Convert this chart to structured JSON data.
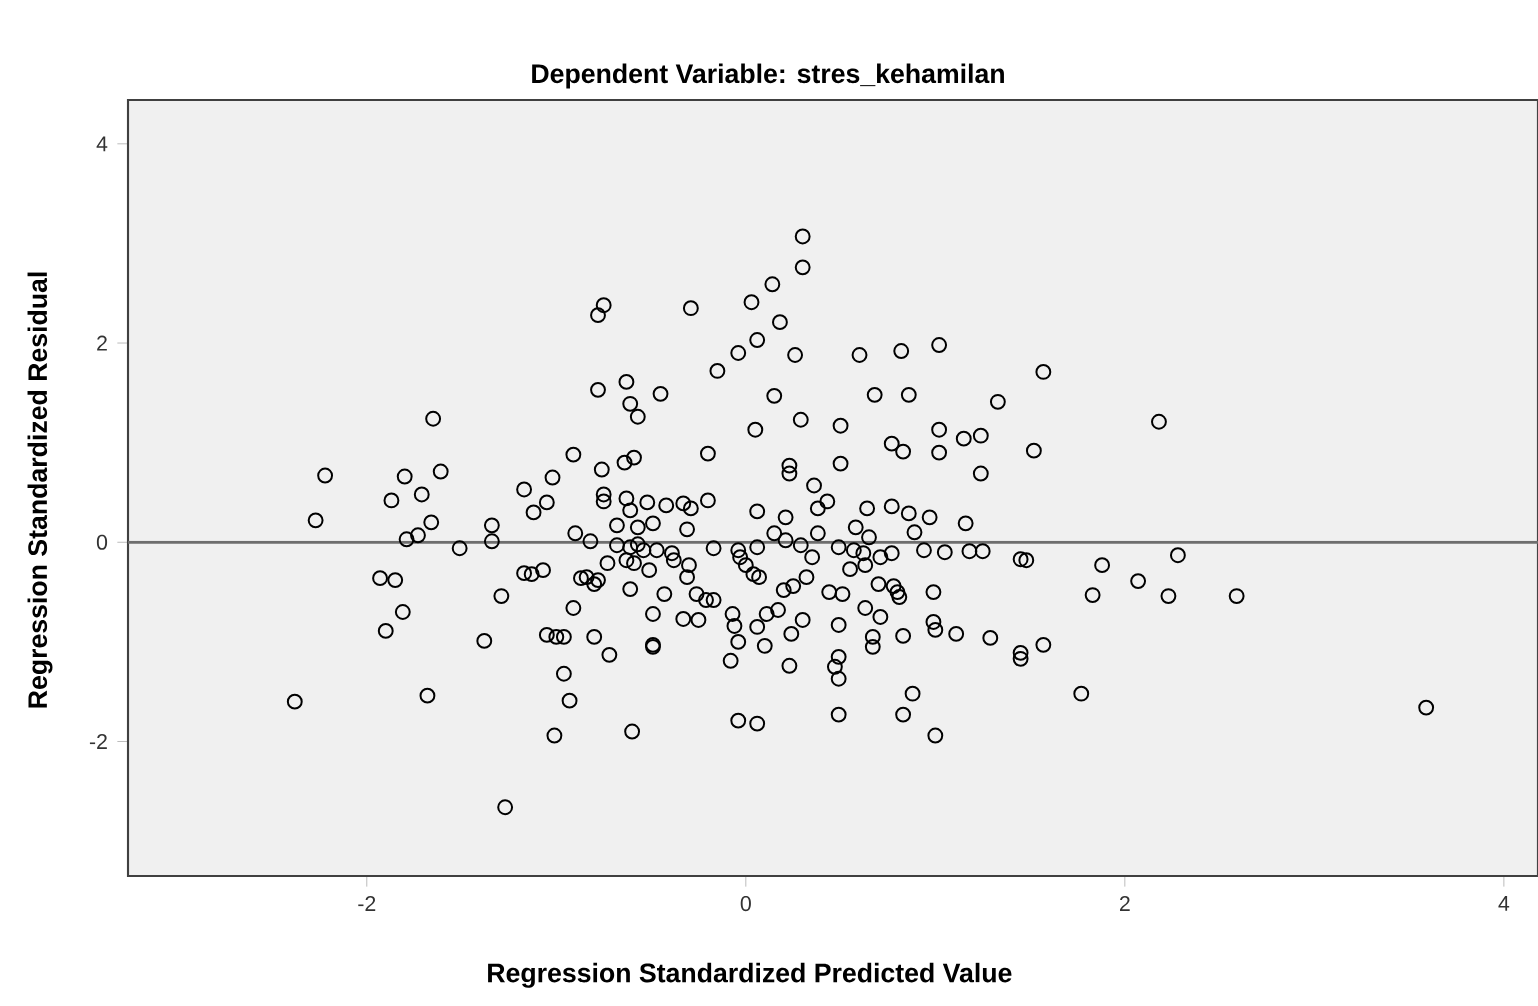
{
  "chart_data": {
    "type": "scatter",
    "title": "Dependent Variable: stres_kehamilan",
    "xlabel": "Regression Standardized Predicted Value",
    "ylabel": "Regression Standardized Residual",
    "xlim": [
      -3.26,
      4.18
    ],
    "ylim": [
      -3.35,
      4.44
    ],
    "xticks": [
      -2,
      0,
      2,
      4
    ],
    "yticks": [
      -2,
      0,
      2,
      4
    ],
    "grid": false,
    "marker": "circle",
    "ref_lines": [
      {
        "axis": "y",
        "value": 0,
        "color": "#6e6e6e"
      }
    ],
    "series": [
      {
        "color": "#000000",
        "x": [
          -1.65,
          -2.22,
          -2.27,
          -1.8,
          -1.61,
          -1.87,
          -1.71,
          -1.66,
          -1.79,
          -1.73,
          -1.51,
          -1.34,
          -1.34,
          -1.17,
          -1.02,
          -1.12,
          -1.05,
          -0.91,
          -0.9,
          -1.93,
          -1.85,
          -1.81,
          -1.9,
          -2.38,
          -1.68,
          -1.38,
          -1.29,
          -1.17,
          -1.13,
          -1.07,
          -1.05,
          -1.0,
          -0.96,
          -0.96,
          -0.93,
          -1.01,
          -1.27,
          -0.91,
          -0.87,
          0.3,
          0.3,
          -0.75,
          -0.78,
          -0.29,
          0.14,
          0.03,
          0.18,
          0.06,
          -0.04,
          0.26,
          -0.15,
          -0.78,
          -0.63,
          -0.61,
          -0.57,
          -0.45,
          0.15,
          0.05,
          0.29,
          -0.76,
          -0.64,
          -0.59,
          -0.2,
          0.23,
          0.23,
          0.36,
          -0.75,
          -0.75,
          -0.63,
          -0.52,
          -0.42,
          -0.33,
          -0.29,
          -0.2,
          -0.61,
          -0.68,
          -0.57,
          -0.49,
          -0.31,
          0.06,
          0.21,
          0.38,
          -0.82,
          -0.68,
          -0.61,
          -0.57,
          -0.54,
          -0.63,
          -0.59,
          -0.47,
          -0.39,
          -0.17,
          -0.04,
          0.06,
          0.15,
          0.21,
          0.29,
          0.35,
          -0.84,
          -0.78,
          -0.8,
          -0.73,
          -0.51,
          -0.38,
          -0.31,
          -0.3,
          -0.26,
          -0.21,
          -0.17,
          -0.61,
          -0.43,
          -0.03,
          0.0,
          0.04,
          0.07,
          0.2,
          0.25,
          0.32,
          -0.49,
          -0.33,
          -0.25,
          -0.07,
          -0.06,
          0.06,
          0.11,
          0.17,
          0.3,
          0.24,
          -0.8,
          -0.72,
          -0.49,
          -0.49,
          -0.04,
          -0.08,
          0.1,
          0.23,
          -0.6,
          -0.04,
          0.06,
          0.6,
          0.82,
          1.02,
          1.57,
          0.68,
          0.86,
          1.33,
          0.5,
          1.02,
          1.15,
          1.24,
          0.77,
          0.83,
          1.02,
          1.52,
          1.24,
          0.5,
          0.43,
          0.64,
          0.77,
          0.86,
          0.97,
          1.16,
          0.58,
          0.65,
          0.89,
          0.38,
          0.49,
          0.57,
          0.62,
          0.71,
          0.77,
          0.94,
          1.05,
          1.18,
          1.25,
          1.45,
          1.48,
          0.55,
          0.63,
          0.44,
          0.51,
          0.7,
          0.78,
          0.81,
          0.8,
          0.99,
          0.63,
          0.71,
          0.49,
          0.99,
          1.0,
          1.11,
          0.83,
          0.67,
          0.67,
          1.29,
          1.45,
          1.45,
          1.57,
          0.49,
          0.47,
          0.49,
          0.88,
          0.49,
          0.83,
          1.0,
          2.18,
          1.88,
          2.28,
          2.07,
          1.83,
          2.23,
          2.59,
          1.77,
          3.59
        ],
        "values": [
          1.24,
          0.67,
          0.22,
          0.66,
          0.71,
          0.42,
          0.48,
          0.2,
          0.03,
          0.07,
          -0.06,
          0.17,
          0.01,
          0.53,
          0.65,
          0.3,
          0.4,
          0.88,
          0.09,
          -0.36,
          -0.38,
          -0.7,
          -0.89,
          -1.6,
          -1.54,
          -0.99,
          -0.54,
          -0.31,
          -0.32,
          -0.28,
          -0.93,
          -0.95,
          -0.95,
          -1.32,
          -1.59,
          -1.94,
          -2.66,
          -0.66,
          -0.36,
          3.07,
          2.76,
          2.38,
          2.28,
          2.35,
          2.59,
          2.41,
          2.21,
          2.03,
          1.9,
          1.88,
          1.72,
          1.53,
          1.61,
          1.39,
          1.26,
          1.49,
          1.47,
          1.13,
          1.23,
          0.73,
          0.8,
          0.85,
          0.89,
          0.77,
          0.69,
          0.57,
          0.48,
          0.41,
          0.44,
          0.4,
          0.37,
          0.39,
          0.34,
          0.42,
          0.32,
          0.17,
          0.15,
          0.19,
          0.13,
          0.31,
          0.25,
          0.34,
          0.01,
          -0.03,
          -0.05,
          -0.02,
          -0.08,
          -0.18,
          -0.21,
          -0.08,
          -0.11,
          -0.06,
          -0.08,
          -0.05,
          0.09,
          0.02,
          -0.03,
          -0.15,
          -0.35,
          -0.38,
          -0.42,
          -0.21,
          -0.28,
          -0.18,
          -0.35,
          -0.23,
          -0.52,
          -0.58,
          -0.58,
          -0.47,
          -0.52,
          -0.15,
          -0.23,
          -0.32,
          -0.35,
          -0.48,
          -0.44,
          -0.35,
          -0.72,
          -0.77,
          -0.78,
          -0.72,
          -0.84,
          -0.85,
          -0.72,
          -0.68,
          -0.78,
          -0.92,
          -0.95,
          -1.13,
          -1.03,
          -1.05,
          -1.0,
          -1.19,
          -1.04,
          -1.24,
          -1.9,
          -1.79,
          -1.82,
          1.88,
          1.92,
          1.98,
          1.71,
          1.48,
          1.48,
          1.41,
          1.17,
          1.13,
          1.04,
          1.07,
          0.99,
          0.91,
          0.9,
          0.92,
          0.69,
          0.79,
          0.41,
          0.34,
          0.36,
          0.29,
          0.25,
          0.19,
          0.15,
          0.05,
          0.1,
          0.09,
          -0.05,
          -0.08,
          -0.11,
          -0.15,
          -0.11,
          -0.08,
          -0.1,
          -0.09,
          -0.09,
          -0.17,
          -0.18,
          -0.27,
          -0.23,
          -0.5,
          -0.52,
          -0.42,
          -0.44,
          -0.55,
          -0.5,
          -0.5,
          -0.66,
          -0.75,
          -0.83,
          -0.8,
          -0.88,
          -0.92,
          -0.94,
          -0.95,
          -1.05,
          -0.96,
          -1.11,
          -1.17,
          -1.03,
          -1.15,
          -1.25,
          -1.37,
          -1.52,
          -1.73,
          -1.73,
          -1.94,
          1.21,
          -0.23,
          -0.13,
          -0.39,
          -0.53,
          -0.54,
          -0.54,
          -1.52,
          -1.66
        ]
      }
    ]
  }
}
